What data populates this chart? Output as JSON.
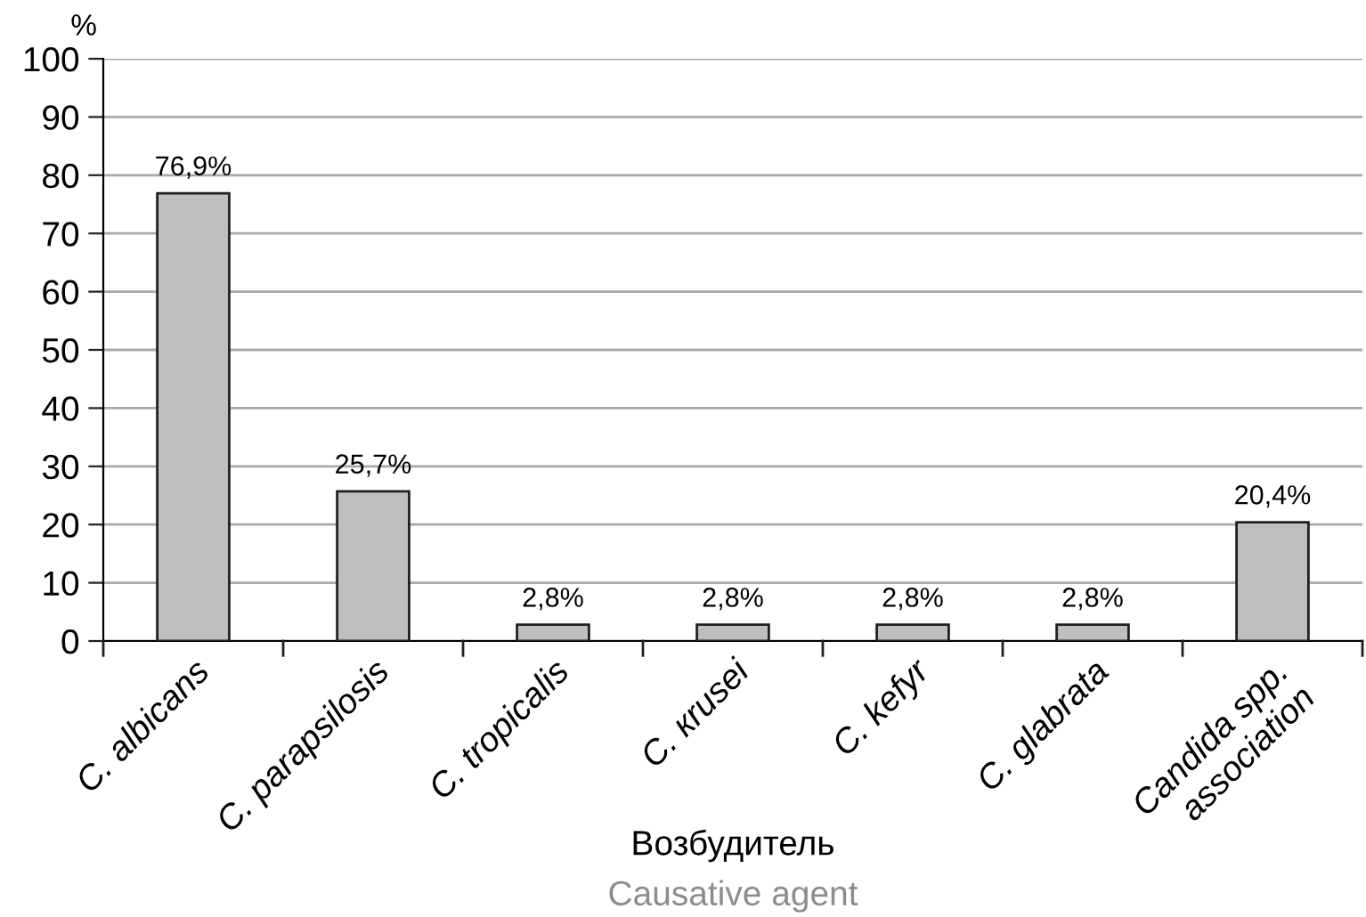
{
  "chart_data": {
    "type": "bar",
    "ylabel": "%",
    "xlabel": "Возбудитель",
    "annotations": [
      "Causative agent"
    ],
    "categories": [
      "C. albicans",
      "C. parapsilosis",
      "C. tropicalis",
      "C. кrusei",
      "C. kefyr",
      "C. glabrata",
      "Candida spp.\nassociation"
    ],
    "values": [
      76.9,
      25.7,
      2.8,
      2.8,
      2.8,
      2.8,
      20.4
    ],
    "value_labels": [
      "76,9%",
      "25,7%",
      "2,8%",
      "2,8%",
      "2,8%",
      "2,8%",
      "20,4%"
    ],
    "color": "#bcbec0",
    "ylim": [
      0,
      100
    ],
    "yticks": [
      0,
      10,
      20,
      30,
      40,
      50,
      60,
      70,
      80,
      90,
      100
    ],
    "grid": "y"
  }
}
